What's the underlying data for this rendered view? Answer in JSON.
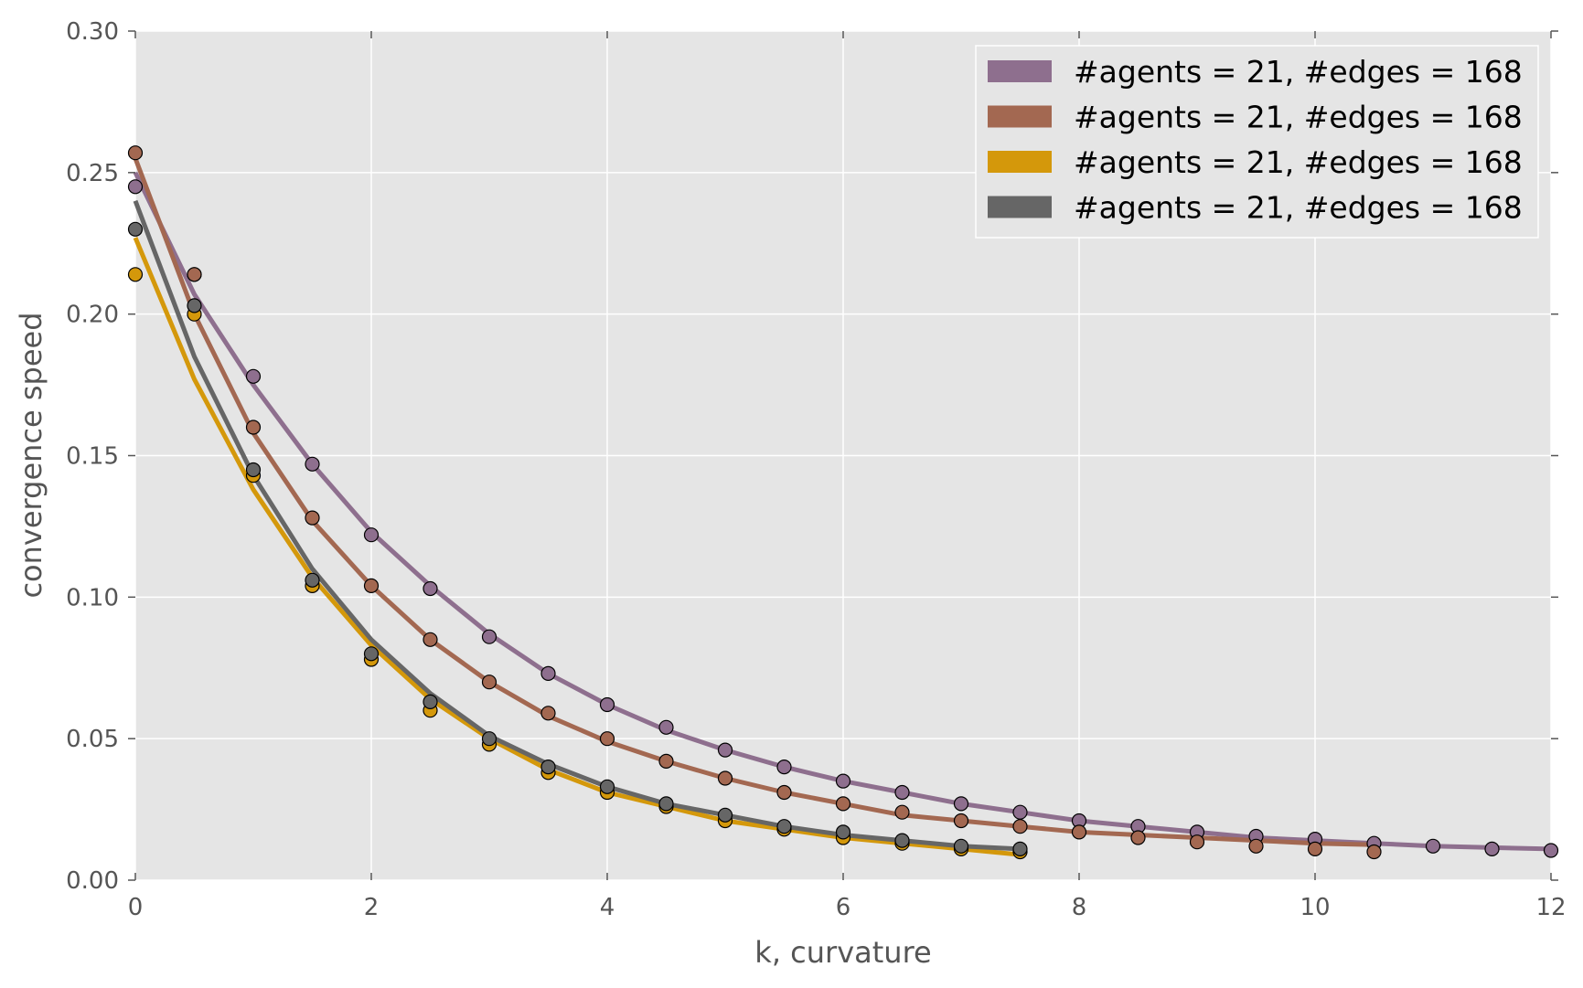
{
  "chart_data": {
    "type": "line",
    "title": "",
    "xlabel": "k, curvature",
    "ylabel": "convergence speed",
    "xlim": [
      0,
      12
    ],
    "ylim": [
      0,
      0.3
    ],
    "xticks": [
      "0",
      "2",
      "4",
      "6",
      "8",
      "10",
      "12"
    ],
    "yticks": [
      "0.00",
      "0.05",
      "0.10",
      "0.15",
      "0.20",
      "0.25",
      "0.30"
    ],
    "grid": true,
    "background": "#e5e5e5",
    "legend_position": "top-right",
    "series": [
      {
        "name": "#agents = 21, #edges = 168",
        "color": "#8e6f8e",
        "line": {
          "x": [
            0,
            0.5,
            1,
            1.5,
            2,
            2.5,
            3,
            3.5,
            4,
            4.5,
            5,
            5.5,
            6,
            6.5,
            7,
            7.5,
            8,
            8.5,
            9,
            9.5,
            10,
            10.5,
            11,
            11.5,
            12
          ],
          "y": [
            0.25,
            0.207,
            0.175,
            0.147,
            0.123,
            0.104,
            0.087,
            0.073,
            0.062,
            0.053,
            0.046,
            0.04,
            0.035,
            0.031,
            0.027,
            0.024,
            0.021,
            0.019,
            0.017,
            0.015,
            0.014,
            0.013,
            0.012,
            0.0115,
            0.011
          ]
        },
        "points": {
          "x": [
            0,
            0.5,
            1,
            1.5,
            2,
            2.5,
            3,
            3.5,
            4,
            4.5,
            5,
            5.5,
            6,
            6.5,
            7,
            7.5,
            8,
            8.5,
            9,
            9.5,
            10,
            10.5,
            11,
            11.5,
            12
          ],
          "y": [
            0.245,
            0.214,
            0.178,
            0.147,
            0.122,
            0.103,
            0.086,
            0.073,
            0.062,
            0.054,
            0.046,
            0.04,
            0.035,
            0.031,
            0.027,
            0.024,
            0.021,
            0.019,
            0.017,
            0.0155,
            0.0145,
            0.013,
            0.012,
            0.011,
            0.0105
          ]
        }
      },
      {
        "name": "#agents = 21, #edges = 168",
        "color": "#a36851",
        "line": {
          "x": [
            0,
            0.5,
            1,
            1.5,
            2,
            2.5,
            3,
            3.5,
            4,
            4.5,
            5,
            5.5,
            6,
            6.5,
            7,
            7.5,
            8,
            8.5,
            9,
            9.5,
            10,
            10.5
          ],
          "y": [
            0.255,
            0.2,
            0.158,
            0.127,
            0.104,
            0.085,
            0.07,
            0.058,
            0.049,
            0.042,
            0.036,
            0.031,
            0.027,
            0.023,
            0.021,
            0.019,
            0.017,
            0.016,
            0.015,
            0.014,
            0.013,
            0.0125
          ]
        },
        "points": {
          "x": [
            0,
            0.5,
            1,
            1.5,
            2,
            2.5,
            3,
            3.5,
            4,
            4.5,
            5,
            5.5,
            6,
            6.5,
            7,
            7.5,
            8,
            8.5,
            9,
            9.5,
            10,
            10.5
          ],
          "y": [
            0.257,
            0.214,
            0.16,
            0.128,
            0.104,
            0.085,
            0.07,
            0.059,
            0.05,
            0.042,
            0.036,
            0.031,
            0.027,
            0.024,
            0.021,
            0.019,
            0.017,
            0.015,
            0.0135,
            0.012,
            0.011,
            0.01
          ]
        }
      },
      {
        "name": "#agents = 21, #edges = 168",
        "color": "#d4980b",
        "line": {
          "x": [
            0,
            0.5,
            1,
            1.5,
            2,
            2.5,
            3,
            3.5,
            4,
            4.5,
            5,
            5.5,
            6,
            6.5,
            7,
            7.5
          ],
          "y": [
            0.227,
            0.177,
            0.138,
            0.107,
            0.083,
            0.064,
            0.05,
            0.039,
            0.031,
            0.026,
            0.021,
            0.018,
            0.015,
            0.013,
            0.011,
            0.009
          ]
        },
        "points": {
          "x": [
            0,
            0.5,
            1,
            1.5,
            2,
            2.5,
            3,
            3.5,
            4,
            4.5,
            5,
            5.5,
            6,
            6.5,
            7,
            7.5
          ],
          "y": [
            0.214,
            0.2,
            0.143,
            0.104,
            0.078,
            0.06,
            0.048,
            0.038,
            0.031,
            0.026,
            0.021,
            0.018,
            0.015,
            0.013,
            0.011,
            0.01
          ]
        }
      },
      {
        "name": "#agents = 21, #edges = 168",
        "color": "#666666",
        "line": {
          "x": [
            0,
            0.5,
            1,
            1.5,
            2,
            2.5,
            3,
            3.5,
            4,
            4.5,
            5,
            5.5,
            6,
            6.5,
            7,
            7.5
          ],
          "y": [
            0.24,
            0.185,
            0.143,
            0.11,
            0.085,
            0.066,
            0.051,
            0.041,
            0.033,
            0.027,
            0.023,
            0.019,
            0.016,
            0.014,
            0.012,
            0.011
          ]
        },
        "points": {
          "x": [
            0,
            0.5,
            1,
            1.5,
            2,
            2.5,
            3,
            3.5,
            4,
            4.5,
            5,
            5.5,
            6,
            6.5,
            7,
            7.5
          ],
          "y": [
            0.23,
            0.203,
            0.145,
            0.106,
            0.08,
            0.063,
            0.05,
            0.04,
            0.033,
            0.027,
            0.023,
            0.019,
            0.017,
            0.014,
            0.012,
            0.011
          ]
        }
      }
    ]
  }
}
